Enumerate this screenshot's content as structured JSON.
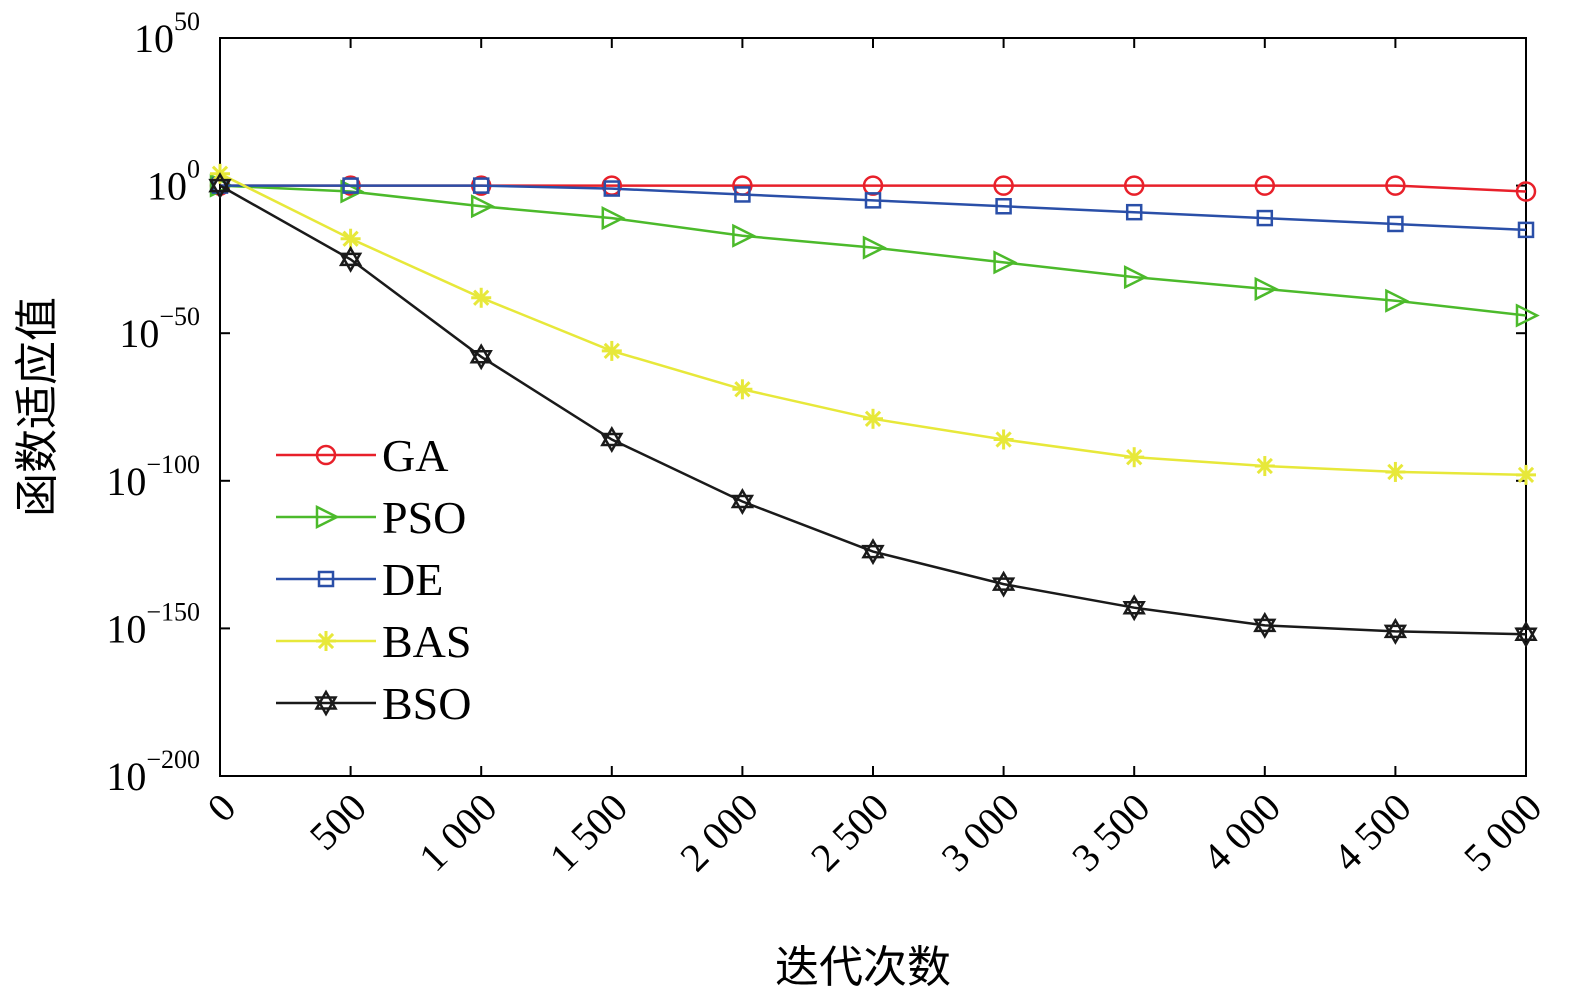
{
  "chart_data": {
    "type": "line",
    "xlabel": "迭代次数",
    "ylabel": "函数适应值",
    "x": [
      0,
      500,
      1000,
      1500,
      2000,
      2500,
      3000,
      3500,
      4000,
      4500,
      5000
    ],
    "x_tick_labels": [
      "0",
      "500",
      "1 000",
      "1 500",
      "2 000",
      "2 500",
      "3 000",
      "3 500",
      "4 000",
      "4 500",
      "5 000"
    ],
    "y_scale": "log",
    "y_ticks": [
      {
        "base": "10",
        "exp": "50",
        "value": 50
      },
      {
        "base": "10",
        "exp": "0",
        "value": 0
      },
      {
        "base": "10",
        "exp": "−50",
        "value": -50
      },
      {
        "base": "10",
        "exp": "−100",
        "value": -100
      },
      {
        "base": "10",
        "exp": "−150",
        "value": -150
      },
      {
        "base": "10",
        "exp": "−200",
        "value": -200
      }
    ],
    "ylim_log10": [
      -200,
      50
    ],
    "xlim": [
      0,
      5000
    ],
    "legend_position": "left",
    "series": [
      {
        "name": "GA",
        "color": "#e8202a",
        "marker": "circle",
        "log10_values": [
          0,
          0,
          0,
          0,
          0,
          0,
          0,
          0,
          0,
          0,
          -2
        ]
      },
      {
        "name": "PSO",
        "color": "#4cba2b",
        "marker": "triangle-right",
        "log10_values": [
          0,
          -2,
          -7,
          -11,
          -17,
          -21,
          -26,
          -31,
          -35,
          -39,
          -44
        ]
      },
      {
        "name": "DE",
        "color": "#2a4fa8",
        "marker": "square",
        "log10_values": [
          0,
          0,
          0,
          -1,
          -3,
          -5,
          -7,
          -9,
          -11,
          -13,
          -15
        ]
      },
      {
        "name": "BAS",
        "color": "#e7e83a",
        "marker": "asterisk",
        "log10_values": [
          4,
          -18,
          -38,
          -56,
          -69,
          -79,
          -86,
          -92,
          -95,
          -97,
          -98
        ]
      },
      {
        "name": "BSO",
        "color": "#1a1a1a",
        "marker": "hexagram",
        "log10_values": [
          0,
          -25,
          -58,
          -86,
          -107,
          -124,
          -135,
          -143,
          -149,
          -151,
          -152
        ]
      }
    ]
  }
}
